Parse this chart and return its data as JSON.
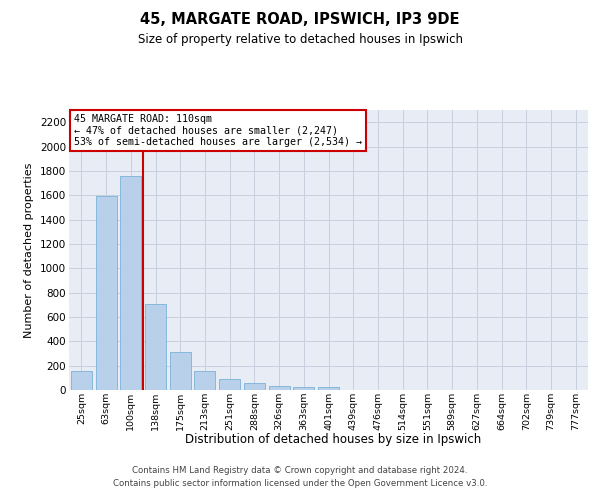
{
  "title1": "45, MARGATE ROAD, IPSWICH, IP3 9DE",
  "title2": "Size of property relative to detached houses in Ipswich",
  "xlabel": "Distribution of detached houses by size in Ipswich",
  "ylabel": "Number of detached properties",
  "categories": [
    "25sqm",
    "63sqm",
    "100sqm",
    "138sqm",
    "175sqm",
    "213sqm",
    "251sqm",
    "288sqm",
    "326sqm",
    "363sqm",
    "401sqm",
    "439sqm",
    "476sqm",
    "514sqm",
    "551sqm",
    "589sqm",
    "627sqm",
    "664sqm",
    "702sqm",
    "739sqm",
    "777sqm"
  ],
  "values": [
    160,
    1590,
    1760,
    710,
    315,
    160,
    88,
    55,
    35,
    25,
    22,
    0,
    0,
    0,
    0,
    0,
    0,
    0,
    0,
    0,
    0
  ],
  "bar_color": "#b8d0ea",
  "bar_edge_color": "#6aaad4",
  "vline_position": 2.5,
  "vline_color": "#cc0000",
  "annotation_title": "45 MARGATE ROAD: 110sqm",
  "annotation_line1": "← 47% of detached houses are smaller (2,247)",
  "annotation_line2": "53% of semi-detached houses are larger (2,534) →",
  "annotation_box_edge": "#cc0000",
  "ylim": [
    0,
    2300
  ],
  "yticks": [
    0,
    200,
    400,
    600,
    800,
    1000,
    1200,
    1400,
    1600,
    1800,
    2000,
    2200
  ],
  "grid_color": "#c8d0e0",
  "bg_color": "#e8edf5",
  "footer1": "Contains HM Land Registry data © Crown copyright and database right 2024.",
  "footer2": "Contains public sector information licensed under the Open Government Licence v3.0."
}
